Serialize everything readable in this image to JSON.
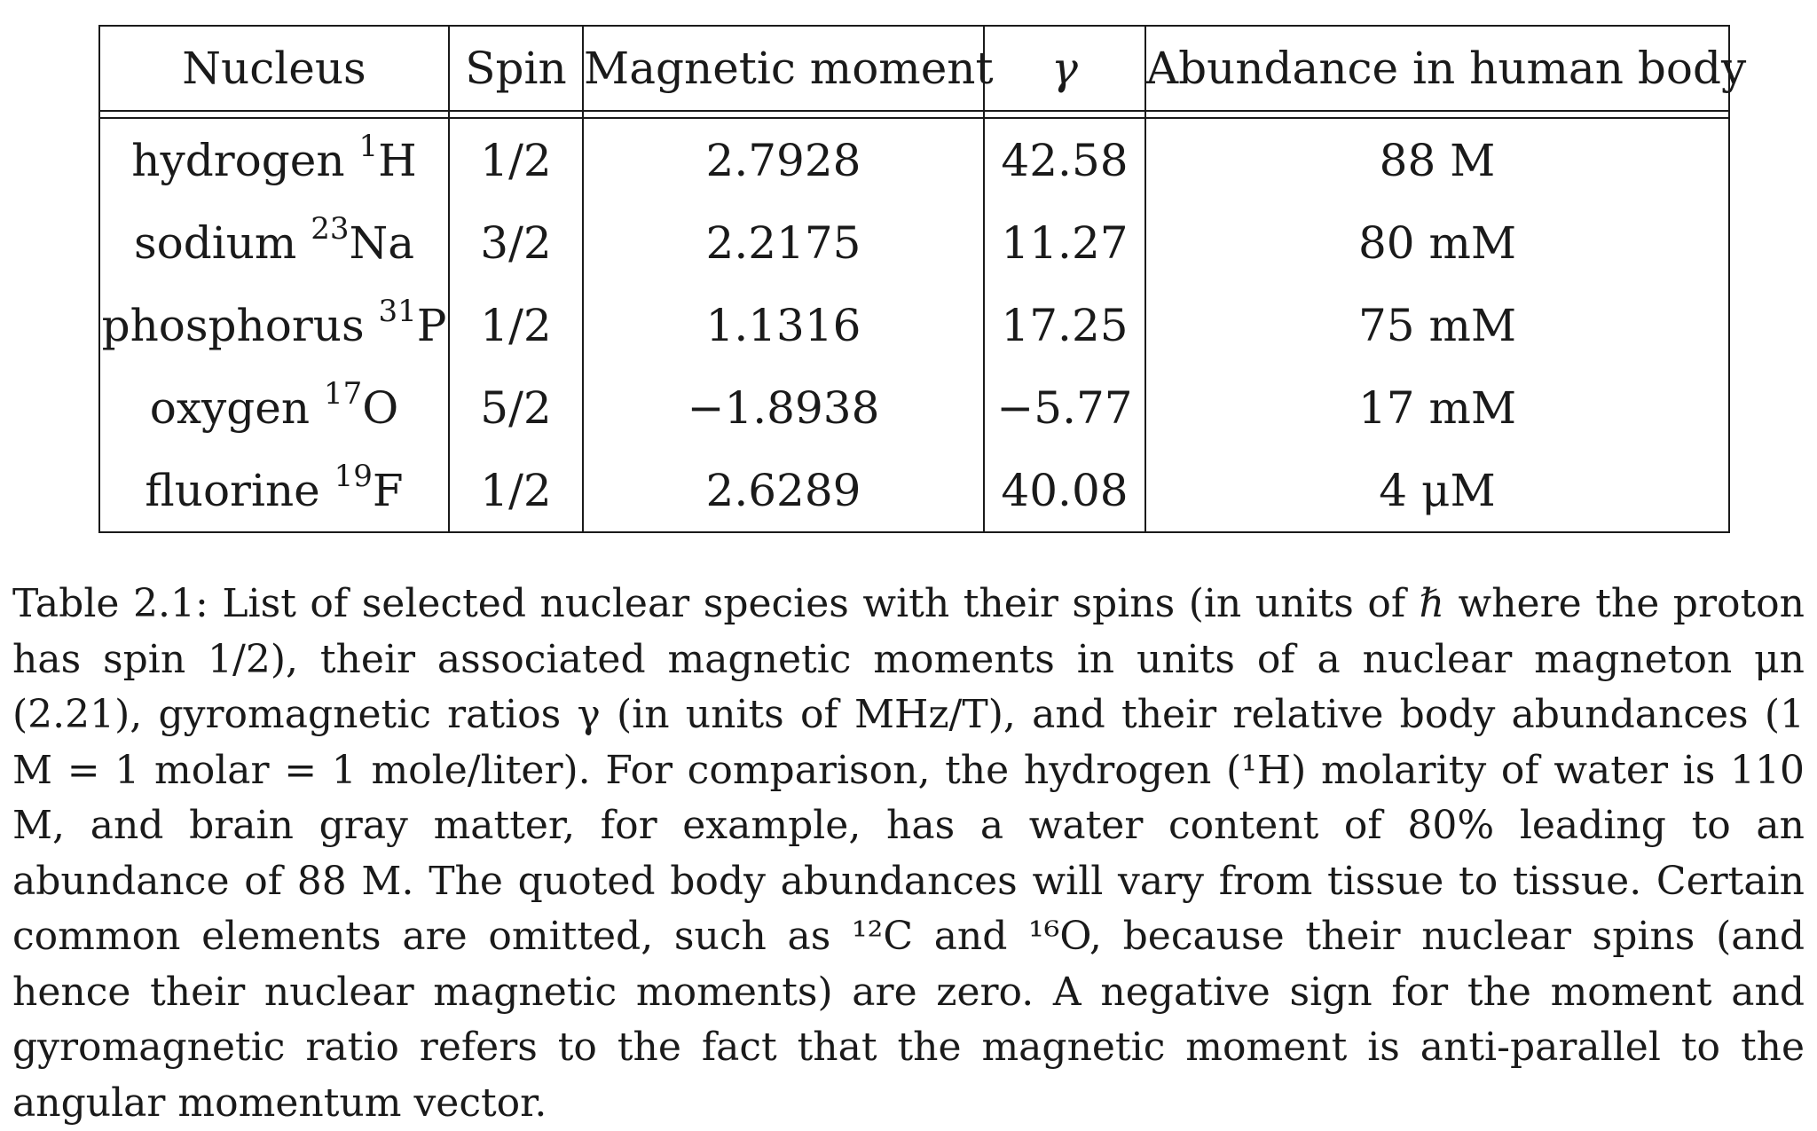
{
  "table": {
    "headers": {
      "nucleus": "Nucleus",
      "spin": "Spin",
      "magnetic_moment": "Magnetic moment",
      "gamma": "γ",
      "abundance": "Abundance in human body"
    },
    "rows": [
      {
        "name": "hydrogen",
        "mass": "1",
        "symbol": "H",
        "spin": "1/2",
        "moment": "2.7928",
        "gamma": "42.58",
        "abundance": "88 M"
      },
      {
        "name": "sodium",
        "mass": "23",
        "symbol": "Na",
        "spin": "3/2",
        "moment": "2.2175",
        "gamma": "11.27",
        "abundance": "80 mM"
      },
      {
        "name": "phosphorus",
        "mass": "31",
        "symbol": "P",
        "spin": "1/2",
        "moment": "1.1316",
        "gamma": "17.25",
        "abundance": "75 mM"
      },
      {
        "name": "oxygen",
        "mass": "17",
        "symbol": "O",
        "spin": "5/2",
        "moment": "−1.8938",
        "gamma": "−5.77",
        "abundance": "17 mM"
      },
      {
        "name": "fluorine",
        "mass": "19",
        "symbol": "F",
        "spin": "1/2",
        "moment": "2.6289",
        "gamma": "40.08",
        "abundance": "4 μM"
      }
    ]
  },
  "caption": {
    "text": "Table 2.1: List of selected nuclear species with their spins (in units of ℏ where the proton has spin 1/2), their associated magnetic moments in units of a nuclear magneton μn (2.21), gyromagnetic ratios γ (in units of MHz/T), and their relative body abundances (1 M = 1 molar = 1 mole/liter). For comparison, the hydrogen (¹H) molarity of water is 110 M, and brain gray matter, for example, has a water content of 80% leading to an abundance of 88 M. The quoted body abundances will vary from tissue to tissue. Certain common elements are omitted, such as ¹²C and ¹⁶O, because their nuclear spins (and hence their nuclear magnetic moments) are zero. A negative sign for the moment and gyromagnetic ratio refers to the fact that the magnetic moment is anti-parallel to the angular momentum vector."
  }
}
